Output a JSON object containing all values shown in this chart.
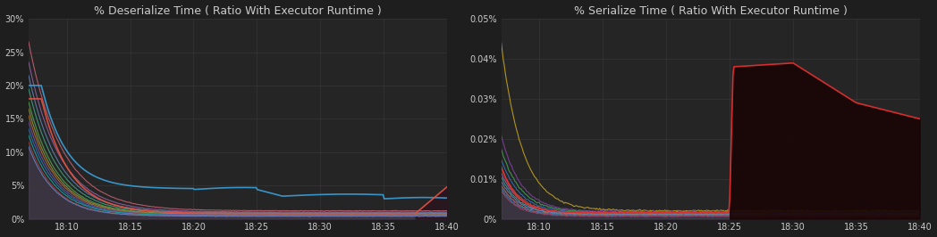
{
  "title1": "% Deserialize Time ( Ratio With Executor Runtime )",
  "title2": "% Serialize Time ( Ratio With Executor Runtime )",
  "bg_color": "#1e1e1e",
  "plot_bg_color": "#252525",
  "text_color": "#cccccc",
  "grid_color": "#3a3a3a",
  "x_ticks": [
    "18:10",
    "18:15",
    "18:20",
    "18:25",
    "18:30",
    "18:35",
    "18:40"
  ],
  "deser_ylim": [
    0,
    0.3
  ],
  "deser_yticks": [
    0,
    0.05,
    0.1,
    0.15,
    0.2,
    0.25,
    0.3
  ],
  "deser_ytick_labels": [
    "0%",
    "5%",
    "10%",
    "15%",
    "20%",
    "25%",
    "30%"
  ],
  "ser_ylim": [
    0,
    0.0005
  ],
  "ser_yticks": [
    0,
    0.0001,
    0.0002,
    0.0003,
    0.0004,
    0.0005
  ],
  "ser_ytick_labels": [
    "0%",
    "0.01%",
    "0.02%",
    "0.03%",
    "0.04%",
    "0.05%"
  ],
  "deser_colors": [
    "#c06070",
    "#9060a0",
    "#6080b0",
    "#40a080",
    "#50a050",
    "#909040",
    "#b07030",
    "#7050a0",
    "#3070b0",
    "#20a0a0",
    "#a04040",
    "#6080c0"
  ],
  "ser_colors": [
    "#c0a020",
    "#8040a0",
    "#40a050",
    "#3070c0",
    "#c05040",
    "#9060b0",
    "#40a090",
    "#7080c0",
    "#b07040",
    "#6050a0",
    "#3080a0",
    "#a04060"
  ]
}
